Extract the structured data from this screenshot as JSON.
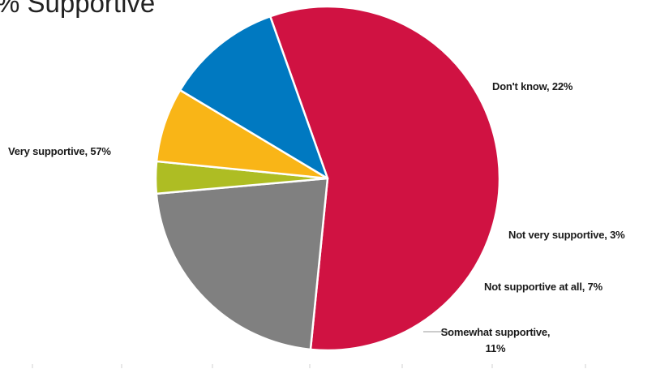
{
  "chart_data": {
    "type": "pie",
    "title": "% Supportive",
    "slices": [
      {
        "label": "Very supportive, 57%",
        "value": 57,
        "color": "#D01242"
      },
      {
        "label": "Don't know, 22%",
        "value": 22,
        "color": "#808080"
      },
      {
        "label": "Not very supportive, 3%",
        "value": 3,
        "color": "#AEBD23"
      },
      {
        "label": "Not supportive at all, 7%",
        "value": 7,
        "color": "#F9B517"
      },
      {
        "label_line1": "Somewhat supportive,",
        "label_line2": "11%",
        "value": 11,
        "color": "#0079C1"
      }
    ]
  }
}
